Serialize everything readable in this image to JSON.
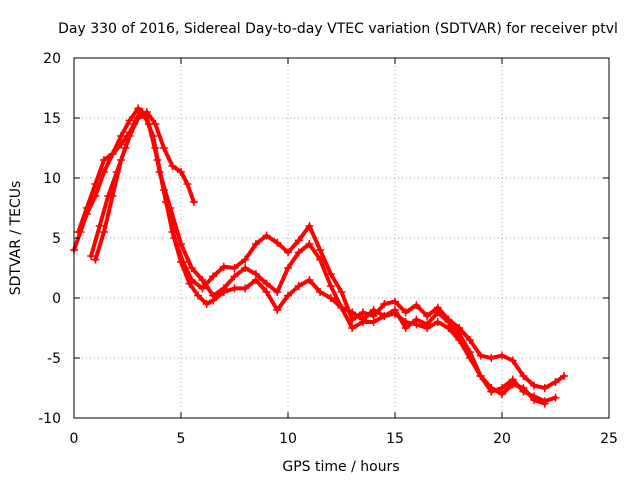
{
  "chart_data": {
    "type": "scatter",
    "title": "Day 330 of 2016, Sidereal Day-to-day VTEC variation (SDTVAR) for receiver ptvl",
    "xlabel": "GPS time / hours",
    "ylabel": "SDTVAR / TECUs",
    "xlim": [
      0,
      25
    ],
    "ylim": [
      -10,
      20
    ],
    "xticks": [
      "0",
      "5",
      "10",
      "15",
      "20",
      "25"
    ],
    "yticks": [
      "-10",
      "-5",
      "0",
      "5",
      "10",
      "15",
      "20"
    ],
    "grid": true,
    "marker": "+",
    "series": [
      {
        "name": "track-1",
        "color": "#ff0000",
        "x": [
          0.0,
          0.3,
          0.6,
          1.0,
          1.4,
          1.8,
          2.2,
          2.6,
          3.0,
          3.2,
          3.5,
          3.9,
          4.3,
          4.7,
          5.1,
          5.5,
          6.0,
          6.5,
          7.0,
          7.5,
          8.0,
          8.5,
          9.0,
          9.5,
          10.0,
          10.5,
          11.0,
          11.5,
          12.0,
          12.5,
          13.0,
          13.5,
          14.0,
          14.5,
          15.0,
          15.5,
          16.0,
          16.5,
          17.0,
          17.5,
          18.0,
          18.5,
          19.0,
          19.5,
          20.0,
          20.5,
          21.0,
          21.5,
          22.0,
          22.5,
          22.9
        ],
        "y": [
          4.0,
          5.5,
          7.0,
          8.5,
          10.5,
          12.0,
          13.5,
          14.8,
          15.8,
          15.5,
          14.5,
          11.5,
          8.0,
          5.0,
          3.0,
          1.5,
          0.8,
          1.8,
          2.6,
          2.5,
          3.2,
          4.5,
          5.2,
          4.6,
          3.8,
          4.8,
          6.0,
          4.0,
          2.0,
          0.5,
          -1.8,
          -1.2,
          -1.5,
          -0.5,
          -0.3,
          -1.2,
          -0.6,
          -1.5,
          -0.8,
          -1.8,
          -2.5,
          -3.5,
          -4.8,
          -5.0,
          -4.8,
          -5.2,
          -6.5,
          -7.3,
          -7.5,
          -7.0,
          -6.5
        ]
      },
      {
        "name": "track-2",
        "color": "#ff0000",
        "x": [
          0.8,
          1.2,
          1.6,
          2.0,
          2.4,
          2.8,
          3.1,
          3.4,
          3.8,
          4.2,
          4.6,
          5.0,
          5.4,
          5.8,
          6.2,
          6.5,
          7.0,
          7.5,
          8.0,
          8.5,
          9.0,
          9.5,
          10.0,
          10.5,
          11.0,
          11.5,
          12.0,
          12.5,
          13.0,
          13.5,
          14.0,
          14.5,
          15.0,
          15.5,
          16.0,
          16.5,
          17.0,
          17.5,
          18.0,
          18.5,
          19.0,
          19.5,
          20.0,
          20.5,
          21.0,
          21.5,
          22.0
        ],
        "y": [
          3.5,
          6.0,
          8.5,
          10.5,
          12.5,
          14.5,
          15.5,
          15.0,
          12.5,
          9.0,
          5.5,
          3.0,
          1.2,
          0.2,
          -0.5,
          -0.2,
          0.5,
          0.8,
          0.8,
          1.5,
          0.5,
          -1.0,
          0.2,
          1.0,
          1.5,
          0.5,
          0.0,
          -0.8,
          -2.5,
          -2.0,
          -2.0,
          -1.5,
          -1.0,
          -2.5,
          -1.8,
          -2.2,
          -1.2,
          -2.0,
          -3.0,
          -4.5,
          -6.5,
          -7.5,
          -8.0,
          -7.2,
          -7.5,
          -8.5,
          -8.8
        ]
      },
      {
        "name": "track-3",
        "color": "#ff0000",
        "x": [
          0.2,
          0.6,
          1.0,
          1.4,
          1.8,
          2.2,
          2.6,
          3.0,
          3.3,
          3.7,
          4.0,
          4.5,
          5.0,
          5.5,
          6.0,
          6.5,
          7.0,
          7.5,
          8.0,
          8.5,
          9.0,
          9.5,
          10.0,
          10.5,
          11.0,
          11.5,
          12.0,
          12.5,
          13.0,
          13.5,
          14.0,
          14.5,
          15.0,
          15.5,
          16.0,
          16.5,
          17.0,
          17.5,
          18.0,
          18.5,
          19.0,
          19.5,
          20.0,
          20.5,
          21.0,
          21.5,
          22.0,
          22.5
        ],
        "y": [
          5.5,
          7.5,
          9.5,
          11.5,
          12.0,
          12.8,
          13.8,
          15.0,
          15.2,
          13.5,
          10.5,
          7.5,
          4.5,
          2.5,
          1.5,
          0.2,
          0.8,
          1.8,
          2.5,
          2.0,
          1.2,
          0.5,
          2.5,
          3.8,
          4.5,
          3.2,
          1.0,
          -0.8,
          -1.2,
          -1.8,
          -1.0,
          -1.5,
          -1.3,
          -2.0,
          -2.2,
          -2.5,
          -2.0,
          -2.5,
          -3.5,
          -5.0,
          -6.5,
          -7.8,
          -7.5,
          -6.8,
          -7.8,
          -8.2,
          -8.6,
          -8.3
        ]
      },
      {
        "name": "track-4",
        "color": "#ff0000",
        "x": [
          1.0,
          1.4,
          1.8,
          2.2,
          2.6,
          3.0,
          3.4,
          3.8,
          4.2,
          4.6,
          5.0,
          5.3,
          5.6
        ],
        "y": [
          3.2,
          5.5,
          8.5,
          11.5,
          13.5,
          15.0,
          15.5,
          14.5,
          12.5,
          11.0,
          10.5,
          9.5,
          8.0
        ]
      }
    ]
  }
}
